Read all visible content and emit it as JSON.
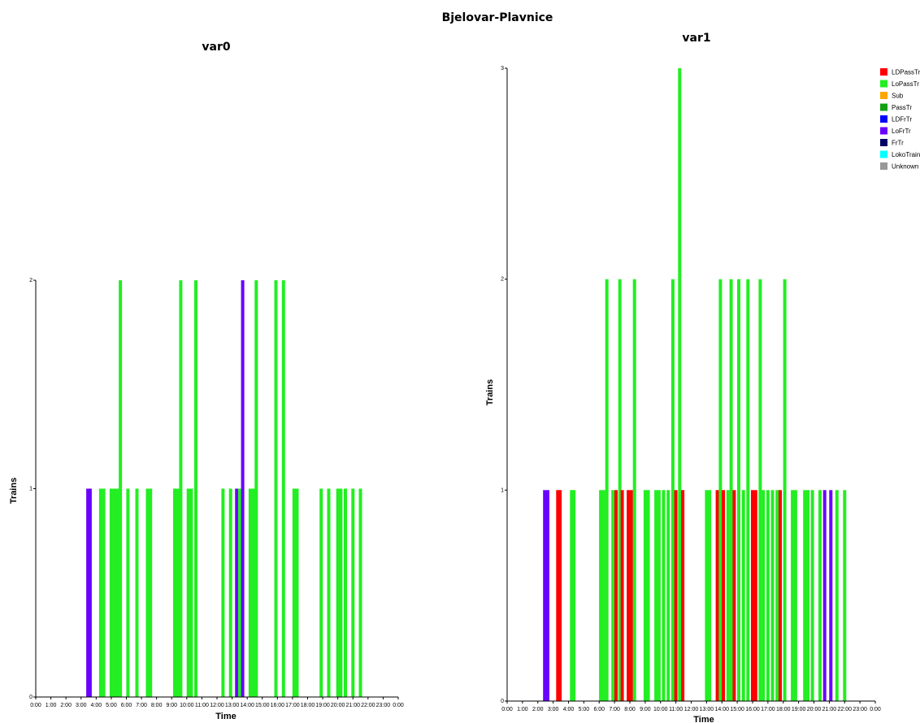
{
  "title": "Bjelovar-Plavnice",
  "colors": {
    "LDPassTr": "#ff0000",
    "LoPassTr": "#22ee22",
    "Sub": "#ffa500",
    "PassTr": "#10a010",
    "LDFrTr": "#0000ff",
    "LoFrTr": "#6a00ff",
    "FrTr": "#000066",
    "LokoTrain": "#00ffff",
    "Unknown": "#999999"
  },
  "legend": [
    "LDPassTr",
    "LoPassTr",
    "Sub",
    "PassTr",
    "LDFrTr",
    "LoFrTr",
    "FrTr",
    "LokoTrain",
    "Unknown"
  ],
  "chart_data": [
    {
      "type": "bar",
      "title": "var0",
      "xlabel": "Time",
      "ylabel": "Trains",
      "ylim": [
        0,
        2
      ],
      "yticks": [
        "0",
        "1",
        "2"
      ],
      "xlim": [
        0,
        24
      ],
      "xticks": [
        "0:00",
        "1:00",
        "2:00",
        "3:00",
        "4:00",
        "5:00",
        "6:00",
        "7:00",
        "8:00",
        "9:00",
        "10:00",
        "11:00",
        "12:00",
        "13:00",
        "14:00",
        "15:00",
        "16:00",
        "17:00",
        "18:00",
        "19:00",
        "20:00",
        "21:00",
        "22:00",
        "23:00",
        "0:00"
      ],
      "bars": [
        {
          "t": 3.45,
          "v": 1,
          "cat": "LoFrTr"
        },
        {
          "t": 3.6,
          "v": 1,
          "cat": "LoFrTr"
        },
        {
          "t": 4.3,
          "v": 1,
          "cat": "LoPassTr"
        },
        {
          "t": 4.5,
          "v": 1,
          "cat": "LoPassTr"
        },
        {
          "t": 5.0,
          "v": 1,
          "cat": "LoPassTr"
        },
        {
          "t": 5.2,
          "v": 1,
          "cat": "LoPassTr"
        },
        {
          "t": 5.4,
          "v": 1,
          "cat": "LoPassTr"
        },
        {
          "t": 5.6,
          "v": 2,
          "cat": "LoPassTr"
        },
        {
          "t": 6.1,
          "v": 1,
          "cat": "LoPassTr"
        },
        {
          "t": 6.7,
          "v": 1,
          "cat": "LoPassTr"
        },
        {
          "t": 7.4,
          "v": 1,
          "cat": "LoPassTr"
        },
        {
          "t": 7.6,
          "v": 1,
          "cat": "LoPassTr"
        },
        {
          "t": 9.2,
          "v": 1,
          "cat": "LoPassTr"
        },
        {
          "t": 9.4,
          "v": 1,
          "cat": "LoPassTr"
        },
        {
          "t": 9.6,
          "v": 2,
          "cat": "LoPassTr"
        },
        {
          "t": 10.1,
          "v": 1,
          "cat": "LoPassTr"
        },
        {
          "t": 10.3,
          "v": 1,
          "cat": "LoPassTr"
        },
        {
          "t": 10.6,
          "v": 2,
          "cat": "LoPassTr"
        },
        {
          "t": 12.4,
          "v": 1,
          "cat": "LoPassTr"
        },
        {
          "t": 12.9,
          "v": 1,
          "cat": "LoPassTr"
        },
        {
          "t": 13.3,
          "v": 1,
          "cat": "LoFrTr"
        },
        {
          "t": 13.5,
          "v": 1,
          "cat": "LoPassTr"
        },
        {
          "t": 13.7,
          "v": 2,
          "cat": "LoFrTr"
        },
        {
          "t": 14.2,
          "v": 1,
          "cat": "LoPassTr"
        },
        {
          "t": 14.4,
          "v": 1,
          "cat": "LoPassTr"
        },
        {
          "t": 14.6,
          "v": 2,
          "cat": "LoPassTr"
        },
        {
          "t": 15.9,
          "v": 2,
          "cat": "LoPassTr"
        },
        {
          "t": 16.4,
          "v": 2,
          "cat": "LoPassTr"
        },
        {
          "t": 17.1,
          "v": 1,
          "cat": "LoPassTr"
        },
        {
          "t": 17.3,
          "v": 1,
          "cat": "LoPassTr"
        },
        {
          "t": 18.9,
          "v": 1,
          "cat": "LoPassTr"
        },
        {
          "t": 19.4,
          "v": 1,
          "cat": "LoPassTr"
        },
        {
          "t": 20.0,
          "v": 1,
          "cat": "LoPassTr"
        },
        {
          "t": 20.2,
          "v": 1,
          "cat": "LoPassTr"
        },
        {
          "t": 20.5,
          "v": 1,
          "cat": "LoPassTr"
        },
        {
          "t": 21.0,
          "v": 1,
          "cat": "LoPassTr"
        },
        {
          "t": 21.5,
          "v": 1,
          "cat": "LoPassTr"
        }
      ]
    },
    {
      "type": "bar",
      "title": "var1",
      "xlabel": "Time",
      "ylabel": "Trains",
      "ylim": [
        0,
        3
      ],
      "yticks": [
        "0",
        "1",
        "2",
        "3"
      ],
      "xlim": [
        0,
        24
      ],
      "xticks": [
        "0:00",
        "1:00",
        "2:00",
        "3:00",
        "4:00",
        "5:00",
        "6:00",
        "7:00",
        "8:00",
        "9:00",
        "10:00",
        "11:00",
        "12:00",
        "13:00",
        "14:00",
        "15:00",
        "16:00",
        "17:00",
        "18:00",
        "19:00",
        "20:00",
        "21:00",
        "22:00",
        "23:00",
        "0:00"
      ],
      "bars": [
        {
          "t": 2.45,
          "v": 1,
          "cat": "LoFrTr"
        },
        {
          "t": 2.65,
          "v": 1,
          "cat": "LoFrTr"
        },
        {
          "t": 3.3,
          "v": 1,
          "cat": "LDPassTr"
        },
        {
          "t": 3.45,
          "v": 1,
          "cat": "LDPassTr"
        },
        {
          "t": 4.2,
          "v": 1,
          "cat": "LoPassTr"
        },
        {
          "t": 4.35,
          "v": 1,
          "cat": "LoPassTr"
        },
        {
          "t": 6.1,
          "v": 1,
          "cat": "LoPassTr"
        },
        {
          "t": 6.3,
          "v": 1,
          "cat": "LoPassTr"
        },
        {
          "t": 6.5,
          "v": 2,
          "cat": "LoPassTr"
        },
        {
          "t": 6.9,
          "v": 1,
          "cat": "LoPassTr"
        },
        {
          "t": 7.1,
          "v": 1,
          "cat": "LDPassTr"
        },
        {
          "t": 7.35,
          "v": 2,
          "cat": "LoPassTr"
        },
        {
          "t": 7.5,
          "v": 1,
          "cat": "LDPassTr"
        },
        {
          "t": 7.9,
          "v": 1,
          "cat": "LDPassTr"
        },
        {
          "t": 8.1,
          "v": 1,
          "cat": "LDPassTr"
        },
        {
          "t": 8.3,
          "v": 2,
          "cat": "LoPassTr"
        },
        {
          "t": 9.0,
          "v": 1,
          "cat": "LoPassTr"
        },
        {
          "t": 9.2,
          "v": 1,
          "cat": "LoPassTr"
        },
        {
          "t": 9.7,
          "v": 1,
          "cat": "LoPassTr"
        },
        {
          "t": 9.9,
          "v": 1,
          "cat": "LoPassTr"
        },
        {
          "t": 10.2,
          "v": 1,
          "cat": "LoPassTr"
        },
        {
          "t": 10.5,
          "v": 1,
          "cat": "LoPassTr"
        },
        {
          "t": 10.8,
          "v": 2,
          "cat": "LoPassTr"
        },
        {
          "t": 11.0,
          "v": 1,
          "cat": "LDPassTr"
        },
        {
          "t": 11.25,
          "v": 3,
          "cat": "LoPassTr"
        },
        {
          "t": 11.45,
          "v": 1,
          "cat": "LDPassTr"
        },
        {
          "t": 13.0,
          "v": 1,
          "cat": "LoPassTr"
        },
        {
          "t": 13.2,
          "v": 1,
          "cat": "LoPassTr"
        },
        {
          "t": 13.7,
          "v": 1,
          "cat": "LDPassTr"
        },
        {
          "t": 13.9,
          "v": 2,
          "cat": "LoPassTr"
        },
        {
          "t": 14.1,
          "v": 1,
          "cat": "LDPassTr"
        },
        {
          "t": 14.4,
          "v": 1,
          "cat": "LoPassTr"
        },
        {
          "t": 14.6,
          "v": 2,
          "cat": "LoPassTr"
        },
        {
          "t": 14.8,
          "v": 1,
          "cat": "LDPassTr"
        },
        {
          "t": 15.1,
          "v": 2,
          "cat": "LoPassTr"
        },
        {
          "t": 15.4,
          "v": 1,
          "cat": "LoPassTr"
        },
        {
          "t": 15.7,
          "v": 2,
          "cat": "LoPassTr"
        },
        {
          "t": 16.0,
          "v": 1,
          "cat": "LDPassTr"
        },
        {
          "t": 16.2,
          "v": 1,
          "cat": "LDPassTr"
        },
        {
          "t": 16.5,
          "v": 2,
          "cat": "LoPassTr"
        },
        {
          "t": 16.7,
          "v": 1,
          "cat": "LoPassTr"
        },
        {
          "t": 17.0,
          "v": 1,
          "cat": "LoPassTr"
        },
        {
          "t": 17.3,
          "v": 1,
          "cat": "LoPassTr"
        },
        {
          "t": 17.6,
          "v": 1,
          "cat": "LoPassTr"
        },
        {
          "t": 17.8,
          "v": 1,
          "cat": "LDPassTr"
        },
        {
          "t": 18.1,
          "v": 2,
          "cat": "LoPassTr"
        },
        {
          "t": 18.6,
          "v": 1,
          "cat": "LoPassTr"
        },
        {
          "t": 18.8,
          "v": 1,
          "cat": "LoPassTr"
        },
        {
          "t": 19.4,
          "v": 1,
          "cat": "LoPassTr"
        },
        {
          "t": 19.6,
          "v": 1,
          "cat": "LoPassTr"
        },
        {
          "t": 19.9,
          "v": 1,
          "cat": "LoPassTr"
        },
        {
          "t": 20.4,
          "v": 1,
          "cat": "LoPassTr"
        },
        {
          "t": 20.7,
          "v": 1,
          "cat": "LoFrTr"
        },
        {
          "t": 21.1,
          "v": 1,
          "cat": "LoFrTr"
        },
        {
          "t": 21.5,
          "v": 1,
          "cat": "LoPassTr"
        },
        {
          "t": 22.0,
          "v": 1,
          "cat": "LoPassTr"
        }
      ]
    }
  ]
}
